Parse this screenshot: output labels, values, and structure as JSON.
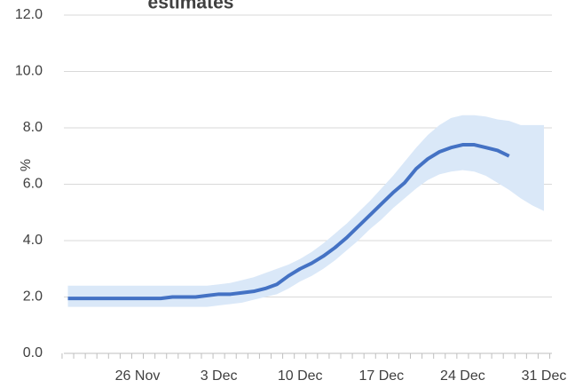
{
  "chart_data": {
    "type": "line",
    "title": "estimates",
    "y_label": "%",
    "categories": [
      null,
      null,
      null,
      null,
      null,
      null,
      "26 Nov",
      null,
      null,
      null,
      null,
      null,
      null,
      "3 Dec",
      null,
      null,
      null,
      null,
      null,
      null,
      "10 Dec",
      null,
      null,
      null,
      null,
      null,
      null,
      "17 Dec",
      null,
      null,
      null,
      null,
      null,
      null,
      "24 Dec",
      null,
      null,
      null,
      null,
      null,
      null,
      "31 Dec"
    ],
    "series": [
      {
        "color": "#4472c4",
        "values": [
          1.95,
          1.95,
          1.95,
          1.95,
          1.95,
          1.95,
          1.95,
          1.95,
          1.95,
          2.0,
          2.0,
          2.0,
          2.05,
          2.1,
          2.1,
          2.15,
          2.2,
          2.3,
          2.45,
          2.75,
          3.0,
          3.2,
          3.45,
          3.75,
          4.1,
          4.5,
          4.9,
          5.3,
          5.7,
          6.05,
          6.55,
          6.9,
          7.15,
          7.3,
          7.4,
          7.4,
          7.3,
          7.2,
          7.0,
          null,
          null,
          null
        ]
      }
    ],
    "band": {
      "color": "#dae8f8",
      "lower": [
        1.65,
        1.65,
        1.65,
        1.65,
        1.65,
        1.65,
        1.65,
        1.65,
        1.65,
        1.65,
        1.65,
        1.65,
        1.65,
        1.7,
        1.75,
        1.8,
        1.9,
        2.0,
        2.1,
        2.3,
        2.55,
        2.75,
        3.0,
        3.3,
        3.65,
        4.0,
        4.4,
        4.75,
        5.15,
        5.5,
        5.85,
        6.15,
        6.35,
        6.45,
        6.5,
        6.45,
        6.3,
        6.05,
        5.8,
        5.5,
        5.25,
        5.05
      ],
      "upper": [
        2.4,
        2.4,
        2.4,
        2.4,
        2.4,
        2.4,
        2.4,
        2.4,
        2.4,
        2.4,
        2.4,
        2.4,
        2.4,
        2.45,
        2.5,
        2.6,
        2.7,
        2.85,
        3.0,
        3.15,
        3.35,
        3.6,
        3.9,
        4.25,
        4.6,
        5.0,
        5.4,
        5.85,
        6.3,
        6.8,
        7.3,
        7.75,
        8.1,
        8.35,
        8.45,
        8.45,
        8.4,
        8.3,
        8.25,
        8.1,
        8.1,
        8.1
      ]
    },
    "ylim": [
      0,
      12
    ],
    "yticks": [
      {
        "value": 0,
        "label": "0.0"
      },
      {
        "value": 2,
        "label": "2.0"
      },
      {
        "value": 4,
        "label": "4.0"
      },
      {
        "value": 6,
        "label": "6.0"
      },
      {
        "value": 8,
        "label": "8.0"
      },
      {
        "value": 10,
        "label": "10.0"
      },
      {
        "value": 12,
        "label": "12.0"
      }
    ],
    "grid": true
  }
}
